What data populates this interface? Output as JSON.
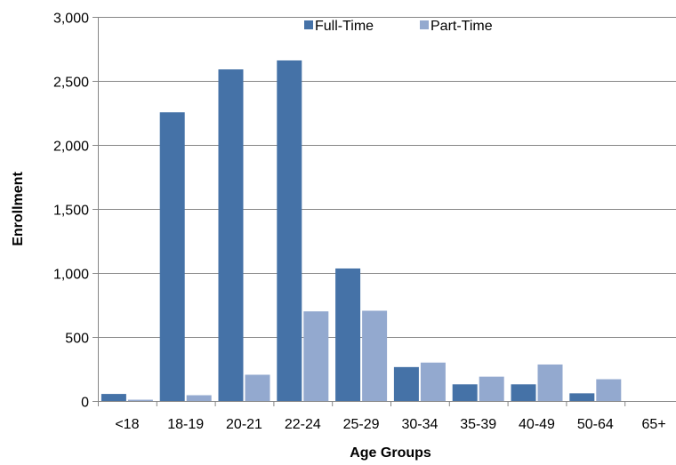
{
  "chart_data": {
    "type": "bar",
    "title": "",
    "xlabel": "Age Groups",
    "ylabel": "Enrollment",
    "ylim": [
      0,
      3000
    ],
    "yticks": [
      0,
      500,
      1000,
      1500,
      2000,
      2500,
      3000
    ],
    "ytick_labels": [
      "0",
      "500",
      "1,000",
      "1,500",
      "2,000",
      "2,500",
      "3,000"
    ],
    "grid": true,
    "legend_position": "top",
    "categories": [
      "<18",
      "18-19",
      "20-21",
      "22-24",
      "25-29",
      "30-34",
      "35-39",
      "40-49",
      "50-64",
      "65+"
    ],
    "series": [
      {
        "name": "Full-Time",
        "color": "#4572A7",
        "values": [
          55,
          2255,
          2590,
          2660,
          1035,
          265,
          130,
          130,
          60,
          0
        ]
      },
      {
        "name": "Part-Time",
        "color": "#93A9CF",
        "values": [
          10,
          45,
          205,
          700,
          705,
          300,
          190,
          285,
          170,
          0
        ]
      }
    ]
  }
}
